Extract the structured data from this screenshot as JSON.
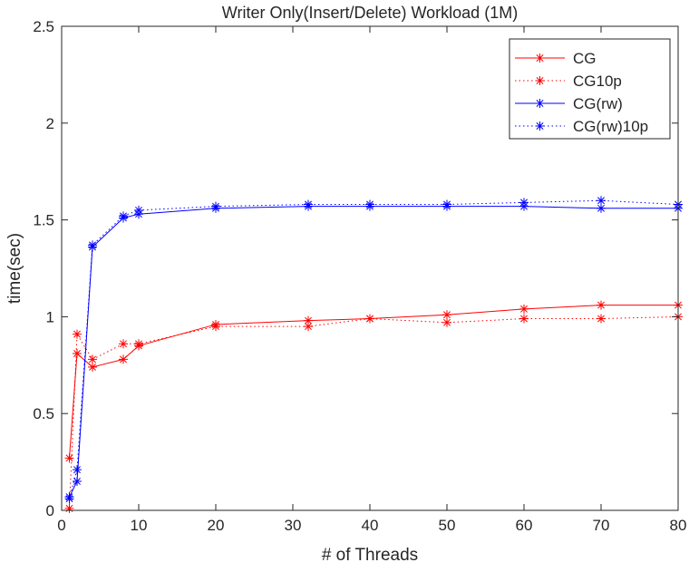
{
  "chart_data": {
    "type": "line",
    "title": "Writer Only(Insert/Delete) Workload (1M)",
    "xlabel": "# of Threads",
    "ylabel": "time(sec)",
    "xlim": [
      0,
      80
    ],
    "ylim": [
      0,
      2.5
    ],
    "xticks": [
      0,
      10,
      20,
      30,
      40,
      50,
      60,
      70,
      80
    ],
    "yticks": [
      0,
      0.5,
      1,
      1.5,
      2,
      2.5
    ],
    "xtick_labels": [
      "0",
      "10",
      "20",
      "30",
      "40",
      "50",
      "60",
      "70",
      "80"
    ],
    "ytick_labels": [
      "0",
      "0.5",
      "1",
      "1.5",
      "2",
      "2.5"
    ],
    "grid": false,
    "legend_position": "top-right",
    "series": [
      {
        "name": "CG",
        "color": "#ff0000",
        "line_style": "solid",
        "marker": "asterisk",
        "x": [
          1,
          2,
          4,
          8,
          10,
          20,
          32,
          40,
          50,
          60,
          70,
          80
        ],
        "y": [
          0.27,
          0.81,
          0.74,
          0.78,
          0.85,
          0.96,
          0.98,
          0.99,
          1.01,
          1.04,
          1.06,
          1.06
        ]
      },
      {
        "name": "CG10p",
        "color": "#ff0000",
        "line_style": "dotted",
        "marker": "asterisk",
        "x": [
          1,
          2,
          4,
          8,
          10,
          20,
          32,
          40,
          50,
          60,
          70,
          80
        ],
        "y": [
          0.01,
          0.91,
          0.78,
          0.86,
          0.86,
          0.95,
          0.95,
          0.99,
          0.97,
          0.99,
          0.99,
          1.0
        ]
      },
      {
        "name": "CG(rw)",
        "color": "#0000ff",
        "line_style": "solid",
        "marker": "asterisk",
        "x": [
          1,
          2,
          4,
          8,
          10,
          20,
          32,
          40,
          50,
          60,
          70,
          80
        ],
        "y": [
          0.07,
          0.15,
          1.36,
          1.51,
          1.53,
          1.56,
          1.57,
          1.57,
          1.57,
          1.57,
          1.56,
          1.56
        ]
      },
      {
        "name": "CG(rw)10p",
        "color": "#0000ff",
        "line_style": "dotted",
        "marker": "asterisk",
        "x": [
          1,
          2,
          4,
          8,
          10,
          20,
          32,
          40,
          50,
          60,
          70,
          80
        ],
        "y": [
          0.06,
          0.21,
          1.37,
          1.52,
          1.55,
          1.57,
          1.58,
          1.58,
          1.58,
          1.59,
          1.6,
          1.58
        ]
      }
    ]
  }
}
